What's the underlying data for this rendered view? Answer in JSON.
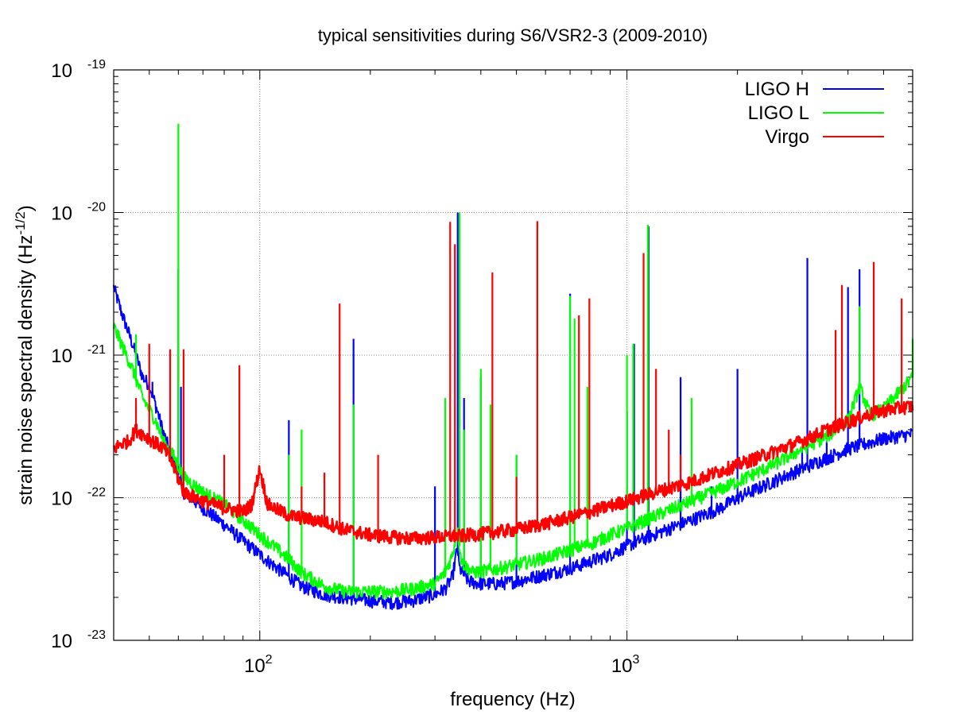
{
  "chart_data": {
    "type": "line",
    "title": "typical sensitivities during S6/VSR2-3 (2009-2010)",
    "xlabel": "frequency (Hz)",
    "ylabel": "strain noise spectral density (Hz",
    "ylabel_exponent": "-1/2",
    "ylabel_suffix": ")",
    "xscale": "log",
    "yscale": "log",
    "xlim": [
      40,
      6000
    ],
    "ylim": [
      1e-23,
      1e-19
    ],
    "grid": true,
    "legend_position": "top-right",
    "x_ticks": [
      {
        "value": 100,
        "base": "10",
        "exp": "2"
      },
      {
        "value": 1000,
        "base": "10",
        "exp": "3"
      }
    ],
    "y_ticks": [
      {
        "value": 1e-23,
        "base": "10",
        "exp": "-23"
      },
      {
        "value": 1e-22,
        "base": "10",
        "exp": "-22"
      },
      {
        "value": 1e-21,
        "base": "10",
        "exp": "-21"
      },
      {
        "value": 1e-20,
        "base": "10",
        "exp": "-20"
      },
      {
        "value": 1e-19,
        "base": "10",
        "exp": "-19"
      }
    ],
    "series": [
      {
        "name": "LIGO H",
        "color": "#0000ff",
        "points": [
          [
            40,
            3e-21
          ],
          [
            42,
            2e-21
          ],
          [
            45,
            1.2e-21
          ],
          [
            48,
            7e-22
          ],
          [
            50,
            6.2e-22
          ],
          [
            52,
            4.5e-22
          ],
          [
            55,
            2.7e-22
          ],
          [
            58,
            1.9e-22
          ],
          [
            62,
            1.1e-22
          ],
          [
            70,
            8.5e-23
          ],
          [
            80,
            6.5e-23
          ],
          [
            90,
            5e-23
          ],
          [
            100,
            4e-23
          ],
          [
            110,
            3.3e-23
          ],
          [
            120,
            2.8e-23
          ],
          [
            130,
            2.4e-23
          ],
          [
            150,
            2.1e-23
          ],
          [
            170,
            2e-23
          ],
          [
            200,
            1.9e-23
          ],
          [
            230,
            1.85e-23
          ],
          [
            260,
            1.9e-23
          ],
          [
            300,
            2.1e-23
          ],
          [
            320,
            2.3e-23
          ],
          [
            335,
            2.8e-23
          ],
          [
            345,
            4.5e-23
          ],
          [
            350,
            3.2e-23
          ],
          [
            370,
            2.6e-23
          ],
          [
            400,
            2.5e-23
          ],
          [
            450,
            2.5e-23
          ],
          [
            500,
            2.6e-23
          ],
          [
            600,
            2.9e-23
          ],
          [
            700,
            3.2e-23
          ],
          [
            800,
            3.6e-23
          ],
          [
            900,
            4e-23
          ],
          [
            1000,
            4.6e-23
          ],
          [
            1200,
            5.6e-23
          ],
          [
            1500,
            7e-23
          ],
          [
            1800,
            8.5e-23
          ],
          [
            2000,
            1e-22
          ],
          [
            2500,
            1.3e-22
          ],
          [
            3000,
            1.6e-22
          ],
          [
            3500,
            1.9e-22
          ],
          [
            4000,
            2.2e-22
          ],
          [
            5000,
            2.6e-22
          ],
          [
            6000,
            2.8e-22
          ]
        ],
        "spikes": [
          [
            51,
            6.5e-22
          ],
          [
            60,
            4e-21
          ],
          [
            61,
            6e-22
          ],
          [
            120,
            3.5e-22
          ],
          [
            180,
            1.3e-21
          ],
          [
            300,
            1.2e-22
          ],
          [
            346,
            1e-20
          ],
          [
            360,
            5e-22
          ],
          [
            400,
            7e-22
          ],
          [
            500,
            2e-22
          ],
          [
            700,
            2.7e-21
          ],
          [
            1000,
            4e-22
          ],
          [
            1046,
            1.2e-21
          ],
          [
            1145,
            8e-21
          ],
          [
            1400,
            7e-22
          ],
          [
            1700,
            1.2e-22
          ],
          [
            2000,
            8e-22
          ],
          [
            3000,
            2.2e-22
          ],
          [
            3100,
            4.8e-21
          ],
          [
            3500,
            2.5e-22
          ],
          [
            4000,
            3e-21
          ],
          [
            4300,
            4e-21
          ]
        ]
      },
      {
        "name": "LIGO L",
        "color": "#00ff00",
        "points": [
          [
            40,
            1.6e-21
          ],
          [
            42,
            1.2e-21
          ],
          [
            45,
            8e-22
          ],
          [
            48,
            5e-22
          ],
          [
            52,
            3.5e-22
          ],
          [
            55,
            2.4e-22
          ],
          [
            58,
            2e-22
          ],
          [
            62,
            1.4e-22
          ],
          [
            70,
            1.1e-22
          ],
          [
            80,
            9e-23
          ],
          [
            90,
            7e-23
          ],
          [
            100,
            5.5e-23
          ],
          [
            110,
            4.5e-23
          ],
          [
            120,
            3.7e-23
          ],
          [
            130,
            3e-23
          ],
          [
            150,
            2.4e-23
          ],
          [
            170,
            2.2e-23
          ],
          [
            200,
            2.2e-23
          ],
          [
            230,
            2.2e-23
          ],
          [
            260,
            2.3e-23
          ],
          [
            300,
            2.5e-23
          ],
          [
            320,
            3e-23
          ],
          [
            335,
            4e-23
          ],
          [
            345,
            6e-23
          ],
          [
            355,
            3.5e-23
          ],
          [
            380,
            3e-23
          ],
          [
            420,
            3.1e-23
          ],
          [
            500,
            3.4e-23
          ],
          [
            600,
            3.8e-23
          ],
          [
            700,
            4.3e-23
          ],
          [
            800,
            4.8e-23
          ],
          [
            900,
            5.5e-23
          ],
          [
            1000,
            6.1e-23
          ],
          [
            1200,
            7.5e-23
          ],
          [
            1500,
            9.5e-23
          ],
          [
            1800,
            1.15e-22
          ],
          [
            2000,
            1.3e-22
          ],
          [
            2500,
            1.7e-22
          ],
          [
            3000,
            2.2e-22
          ],
          [
            3500,
            2.7e-22
          ],
          [
            4000,
            3.5e-22
          ],
          [
            4300,
            6e-22
          ],
          [
            4600,
            3.8e-22
          ],
          [
            5000,
            4.2e-22
          ],
          [
            5500,
            5.5e-22
          ],
          [
            6000,
            7e-22
          ]
        ],
        "spikes": [
          [
            46,
            1.4e-21
          ],
          [
            60,
            4.2e-20
          ],
          [
            120,
            2e-22
          ],
          [
            130,
            3e-22
          ],
          [
            180,
            4.5e-22
          ],
          [
            320,
            5e-22
          ],
          [
            350,
            1e-20
          ],
          [
            360,
            3e-22
          ],
          [
            400,
            8e-22
          ],
          [
            425,
            4.5e-22
          ],
          [
            500,
            2e-22
          ],
          [
            700,
            2.6e-21
          ],
          [
            720,
            1.8e-21
          ],
          [
            780,
            6e-22
          ],
          [
            1000,
            1e-21
          ],
          [
            1040,
            1.2e-21
          ],
          [
            1140,
            8.2e-21
          ],
          [
            1500,
            5e-22
          ],
          [
            4300,
            2.2e-21
          ],
          [
            6000,
            1.3e-21
          ]
        ]
      },
      {
        "name": "Virgo",
        "color": "#ff0000",
        "points": [
          [
            40,
            2.2e-22
          ],
          [
            42,
            2.4e-22
          ],
          [
            44,
            2.5e-22
          ],
          [
            46,
            3e-22
          ],
          [
            48,
            2.8e-22
          ],
          [
            50,
            2.6e-22
          ],
          [
            55,
            2.2e-22
          ],
          [
            58,
            1.7e-22
          ],
          [
            62,
            1.1e-22
          ],
          [
            70,
            9.5e-23
          ],
          [
            80,
            8.5e-23
          ],
          [
            90,
            8e-23
          ],
          [
            95,
            9e-23
          ],
          [
            100,
            1.6e-22
          ],
          [
            105,
            9e-23
          ],
          [
            120,
            7.5e-23
          ],
          [
            150,
            6.8e-23
          ],
          [
            170,
            6e-23
          ],
          [
            200,
            5.5e-23
          ],
          [
            230,
            5.3e-23
          ],
          [
            260,
            5.2e-23
          ],
          [
            300,
            5.3e-23
          ],
          [
            350,
            5.4e-23
          ],
          [
            400,
            5.6e-23
          ],
          [
            500,
            6e-23
          ],
          [
            600,
            6.6e-23
          ],
          [
            700,
            7.3e-23
          ],
          [
            800,
            8e-23
          ],
          [
            900,
            8.8e-23
          ],
          [
            1000,
            9.5e-23
          ],
          [
            1200,
            1.1e-22
          ],
          [
            1500,
            1.3e-22
          ],
          [
            1800,
            1.55e-22
          ],
          [
            2000,
            1.7e-22
          ],
          [
            2500,
            2.1e-22
          ],
          [
            3000,
            2.5e-22
          ],
          [
            3500,
            3e-22
          ],
          [
            4000,
            3.4e-22
          ],
          [
            4500,
            3.8e-22
          ],
          [
            5000,
            4.1e-22
          ],
          [
            6000,
            4.4e-22
          ]
        ],
        "spikes": [
          [
            46,
            5e-22
          ],
          [
            50,
            1.2e-21
          ],
          [
            57,
            1.1e-21
          ],
          [
            62,
            1.1e-21
          ],
          [
            80,
            2e-22
          ],
          [
            88,
            8.5e-22
          ],
          [
            130,
            1.2e-22
          ],
          [
            150,
            1.5e-22
          ],
          [
            165,
            2.3e-21
          ],
          [
            210,
            2e-22
          ],
          [
            330,
            8.6e-21
          ],
          [
            340,
            6e-21
          ],
          [
            430,
            3.8e-21
          ],
          [
            500,
            1.4e-22
          ],
          [
            570,
            8.7e-21
          ],
          [
            740,
            1.9e-21
          ],
          [
            790,
            2.5e-21
          ],
          [
            1110,
            5.2e-21
          ],
          [
            1200,
            8e-22
          ],
          [
            1300,
            3e-22
          ],
          [
            1400,
            2e-22
          ],
          [
            3700,
            1.5e-21
          ],
          [
            3850,
            3.1e-21
          ],
          [
            4700,
            4.5e-21
          ],
          [
            5600,
            2.5e-21
          ]
        ]
      }
    ]
  }
}
